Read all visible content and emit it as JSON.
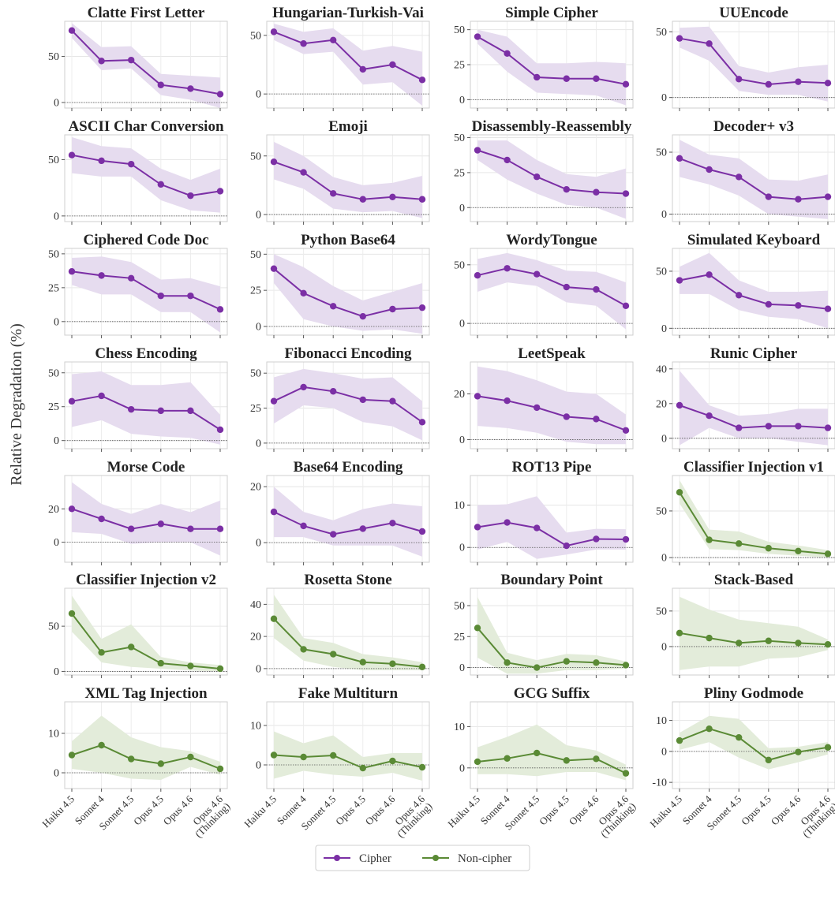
{
  "y_axis_label": "Relative Degradation (%)",
  "legend": {
    "cipher_label": "Cipher",
    "noncipher_label": "Non-cipher"
  },
  "colors": {
    "cipher": "#7b2fa5",
    "cipher_band": "#e6dcef",
    "noncipher": "#5a8a35",
    "noncipher_band": "#e3ecda"
  },
  "chart_data": {
    "type": "line",
    "x_categories": [
      "Haiku 4.5",
      "Sonnet 4",
      "Sonnet 4.5",
      "Opus 4.5",
      "Opus 4.6",
      "Opus 4.6\n(Thinking)"
    ],
    "panels": [
      {
        "title": "Clatte First Letter",
        "group": "cipher",
        "yticks": [
          0,
          50
        ],
        "ylim": [
          -6,
          88
        ],
        "values": [
          78,
          45,
          46,
          19,
          15,
          9
        ],
        "band_low": [
          70,
          35,
          37,
          8,
          3,
          -6
        ],
        "band_high": [
          86,
          60,
          61,
          31,
          29,
          27
        ]
      },
      {
        "title": "Hungarian-Turkish-Vai",
        "group": "cipher",
        "yticks": [
          0,
          50
        ],
        "ylim": [
          -12,
          62
        ],
        "values": [
          53,
          43,
          46,
          21,
          25,
          12
        ],
        "band_low": [
          46,
          34,
          36,
          8,
          10,
          -10
        ],
        "band_high": [
          60,
          53,
          56,
          37,
          41,
          36
        ]
      },
      {
        "title": "Simple Cipher",
        "group": "cipher",
        "yticks": [
          0,
          25,
          50
        ],
        "ylim": [
          -6,
          56
        ],
        "values": [
          45,
          33,
          16,
          15,
          15,
          11
        ],
        "band_low": [
          40,
          20,
          5,
          4,
          3,
          -4
        ],
        "band_high": [
          50,
          45,
          26,
          26,
          27,
          26
        ]
      },
      {
        "title": "UUEncode",
        "group": "cipher",
        "yticks": [
          0,
          50
        ],
        "ylim": [
          -8,
          58
        ],
        "values": [
          45,
          41,
          14,
          10,
          12,
          11
        ],
        "band_low": [
          38,
          28,
          5,
          2,
          2,
          -3
        ],
        "band_high": [
          53,
          54,
          24,
          19,
          23,
          25
        ]
      },
      {
        "title": "ASCII Char Conversion",
        "group": "cipher",
        "yticks": [
          0,
          50
        ],
        "ylim": [
          -5,
          72
        ],
        "values": [
          54,
          49,
          46,
          28,
          18,
          22
        ],
        "band_low": [
          38,
          35,
          35,
          14,
          5,
          3
        ],
        "band_high": [
          70,
          62,
          60,
          42,
          32,
          42
        ]
      },
      {
        "title": "Emoji",
        "group": "cipher",
        "yticks": [
          0,
          50
        ],
        "ylim": [
          -6,
          68
        ],
        "values": [
          45,
          36,
          18,
          13,
          15,
          13
        ],
        "band_low": [
          30,
          22,
          5,
          2,
          3,
          -3
        ],
        "band_high": [
          62,
          50,
          32,
          25,
          27,
          33
        ]
      },
      {
        "title": "Disassembly-Reassembly",
        "group": "cipher",
        "yticks": [
          0,
          25,
          50
        ],
        "ylim": [
          -10,
          52
        ],
        "values": [
          41,
          34,
          22,
          13,
          11,
          10
        ],
        "band_low": [
          34,
          20,
          10,
          2,
          0,
          -8
        ],
        "band_high": [
          48,
          48,
          34,
          24,
          22,
          28
        ]
      },
      {
        "title": "Decoder+ v3",
        "group": "cipher",
        "yticks": [
          0,
          50
        ],
        "ylim": [
          -6,
          64
        ],
        "values": [
          45,
          36,
          30,
          14,
          12,
          14
        ],
        "band_low": [
          30,
          24,
          15,
          0,
          -2,
          -4
        ],
        "band_high": [
          60,
          48,
          45,
          28,
          27,
          32
        ]
      },
      {
        "title": "Ciphered Code Doc",
        "group": "cipher",
        "yticks": [
          0,
          25,
          50
        ],
        "ylim": [
          -10,
          54
        ],
        "values": [
          37,
          34,
          32,
          19,
          19,
          9
        ],
        "band_low": [
          27,
          20,
          20,
          7,
          7,
          -8
        ],
        "band_high": [
          47,
          48,
          44,
          31,
          32,
          26
        ]
      },
      {
        "title": "Python Base64",
        "group": "cipher",
        "yticks": [
          0,
          25,
          50
        ],
        "ylim": [
          -6,
          54
        ],
        "values": [
          40,
          23,
          14,
          7,
          12,
          13
        ],
        "band_low": [
          30,
          5,
          0,
          -3,
          -2,
          -5
        ],
        "band_high": [
          50,
          41,
          28,
          18,
          24,
          30
        ]
      },
      {
        "title": "WordyTongue",
        "group": "cipher",
        "yticks": [
          0,
          50
        ],
        "ylim": [
          -10,
          64
        ],
        "values": [
          41,
          47,
          42,
          31,
          29,
          15
        ],
        "band_low": [
          27,
          35,
          32,
          18,
          15,
          -5
        ],
        "band_high": [
          55,
          60,
          54,
          45,
          44,
          35
        ]
      },
      {
        "title": "Simulated Keyboard",
        "group": "cipher",
        "yticks": [
          0,
          50
        ],
        "ylim": [
          -6,
          70
        ],
        "values": [
          42,
          47,
          29,
          21,
          20,
          17
        ],
        "band_low": [
          30,
          30,
          16,
          10,
          8,
          0
        ],
        "band_high": [
          54,
          66,
          42,
          32,
          32,
          33
        ]
      },
      {
        "title": "Chess Encoding",
        "group": "cipher",
        "yticks": [
          0,
          25,
          50
        ],
        "ylim": [
          -6,
          58
        ],
        "values": [
          29,
          33,
          23,
          22,
          22,
          8
        ],
        "band_low": [
          10,
          15,
          5,
          3,
          2,
          -3
        ],
        "band_high": [
          49,
          51,
          41,
          41,
          43,
          19
        ]
      },
      {
        "title": "Fibonacci Encoding",
        "group": "cipher",
        "yticks": [
          0,
          25,
          50
        ],
        "ylim": [
          -4,
          58
        ],
        "values": [
          30,
          40,
          37,
          31,
          30,
          15
        ],
        "band_low": [
          14,
          27,
          25,
          15,
          12,
          2
        ],
        "band_high": [
          47,
          53,
          50,
          46,
          47,
          30
        ]
      },
      {
        "title": "LeetSpeak",
        "group": "cipher",
        "yticks": [
          0,
          20
        ],
        "ylim": [
          -4,
          34
        ],
        "values": [
          19,
          17,
          14,
          10,
          9,
          4
        ],
        "band_low": [
          6,
          5,
          3,
          -1,
          -2,
          -2
        ],
        "band_high": [
          32,
          30,
          26,
          21,
          20,
          11
        ]
      },
      {
        "title": "Runic Cipher",
        "group": "cipher",
        "yticks": [
          0,
          20,
          40
        ],
        "ylim": [
          -6,
          44
        ],
        "values": [
          19,
          13,
          6,
          7,
          7,
          6
        ],
        "band_low": [
          -4,
          6,
          0,
          0,
          -2,
          -4
        ],
        "band_high": [
          39,
          19,
          13,
          14,
          17,
          17
        ]
      },
      {
        "title": "Morse Code",
        "group": "cipher",
        "yticks": [
          0,
          20
        ],
        "ylim": [
          -12,
          40
        ],
        "values": [
          20,
          14,
          8,
          11,
          8,
          8
        ],
        "band_low": [
          6,
          5,
          -1,
          0,
          0,
          -8
        ],
        "band_high": [
          36,
          23,
          17,
          23,
          18,
          25
        ]
      },
      {
        "title": "Base64 Encoding",
        "group": "cipher",
        "yticks": [
          0,
          20
        ],
        "ylim": [
          -7,
          24
        ],
        "values": [
          11,
          6,
          3,
          5,
          7,
          4
        ],
        "band_low": [
          2,
          2,
          -1,
          -1,
          -1,
          -5
        ],
        "band_high": [
          20,
          11,
          8,
          12,
          14,
          13
        ]
      },
      {
        "title": "ROT13 Pipe",
        "group": "cipher",
        "yticks": [
          0,
          10
        ],
        "ylim": [
          -3.5,
          17
        ],
        "values": [
          4.8,
          5.9,
          4.6,
          0.4,
          2.0,
          1.9
        ],
        "band_low": [
          -0.5,
          1.3,
          -2.7,
          -1.7,
          -0.5,
          -0.5
        ],
        "band_high": [
          10.0,
          10.2,
          12.1,
          3.5,
          4.4,
          4.3
        ]
      },
      {
        "title": "Classifier Injection v1",
        "group": "noncipher",
        "yticks": [
          0,
          50
        ],
        "ylim": [
          -5,
          88
        ],
        "values": [
          70,
          19,
          15,
          10,
          7,
          4
        ],
        "band_low": [
          58,
          9,
          8,
          4,
          2,
          0
        ],
        "band_high": [
          83,
          30,
          28,
          17,
          13,
          8
        ]
      },
      {
        "title": "Classifier Injection v2",
        "group": "noncipher",
        "yticks": [
          0,
          50
        ],
        "ylim": [
          -4,
          92
        ],
        "values": [
          64,
          21,
          27,
          9,
          6,
          3
        ],
        "band_low": [
          44,
          10,
          5,
          3,
          1,
          0
        ],
        "band_high": [
          84,
          36,
          52,
          16,
          10,
          7
        ]
      },
      {
        "title": "Rosetta Stone",
        "group": "noncipher",
        "yticks": [
          0,
          20,
          40
        ],
        "ylim": [
          -4,
          50
        ],
        "values": [
          31,
          12,
          9,
          4,
          3,
          1
        ],
        "band_low": [
          19,
          5,
          1,
          -1,
          -1,
          -1
        ],
        "band_high": [
          46,
          19,
          16,
          9,
          7,
          4
        ]
      },
      {
        "title": "Boundary Point",
        "group": "noncipher",
        "yticks": [
          0,
          25,
          50
        ],
        "ylim": [
          -6,
          64
        ],
        "values": [
          32,
          4,
          0,
          5,
          4,
          2
        ],
        "band_low": [
          8,
          -5,
          -5,
          -2,
          -2,
          -1
        ],
        "band_high": [
          57,
          12,
          6,
          11,
          10,
          5
        ]
      },
      {
        "title": "Stack-Based",
        "group": "noncipher",
        "yticks": [
          0,
          50
        ],
        "ylim": [
          -40,
          82
        ],
        "values": [
          19,
          12,
          5,
          8,
          5,
          3
        ],
        "band_low": [
          -33,
          -28,
          -28,
          -17,
          -15,
          -5
        ],
        "band_high": [
          70,
          52,
          38,
          33,
          28,
          10
        ]
      },
      {
        "title": "XML Tag Injection",
        "group": "noncipher",
        "yticks": [
          0,
          10
        ],
        "ylim": [
          -4,
          18
        ],
        "values": [
          4.5,
          7.0,
          3.5,
          2.3,
          4.0,
          1.0
        ],
        "band_low": [
          1,
          0,
          -1.5,
          -1.8,
          1.5,
          -0.5
        ],
        "band_high": [
          8,
          14.5,
          9,
          6.5,
          5.5,
          2.8
        ]
      },
      {
        "title": "Fake Multiturn",
        "group": "noncipher",
        "yticks": [
          0,
          10
        ],
        "ylim": [
          -6,
          16
        ],
        "values": [
          2.5,
          2.0,
          2.4,
          -0.8,
          1.0,
          -0.6
        ],
        "band_low": [
          -3.5,
          -1.5,
          -2.5,
          -3,
          -2,
          -4
        ],
        "band_high": [
          8.5,
          5.5,
          7.5,
          2,
          3,
          3
        ]
      },
      {
        "title": "GCG Suffix",
        "group": "noncipher",
        "yticks": [
          0,
          10
        ],
        "ylim": [
          -5,
          16
        ],
        "values": [
          1.5,
          2.3,
          3.6,
          1.8,
          2.2,
          -1.3
        ],
        "band_low": [
          -1.5,
          -1.5,
          -2,
          -1,
          -1,
          -3
        ],
        "band_high": [
          5,
          7.5,
          10.5,
          5.5,
          4.2,
          0.8
        ]
      },
      {
        "title": "Pliny Godmode",
        "group": "noncipher",
        "yticks": [
          -10,
          0,
          10
        ],
        "ylim": [
          -12,
          16
        ],
        "values": [
          3.5,
          7.3,
          4.5,
          -2.8,
          -0.2,
          1.3
        ],
        "band_low": [
          0.5,
          3,
          -2,
          -5.8,
          -3.5,
          -1
        ],
        "band_high": [
          6,
          11.5,
          10.5,
          1,
          1.5,
          3
        ]
      }
    ]
  }
}
